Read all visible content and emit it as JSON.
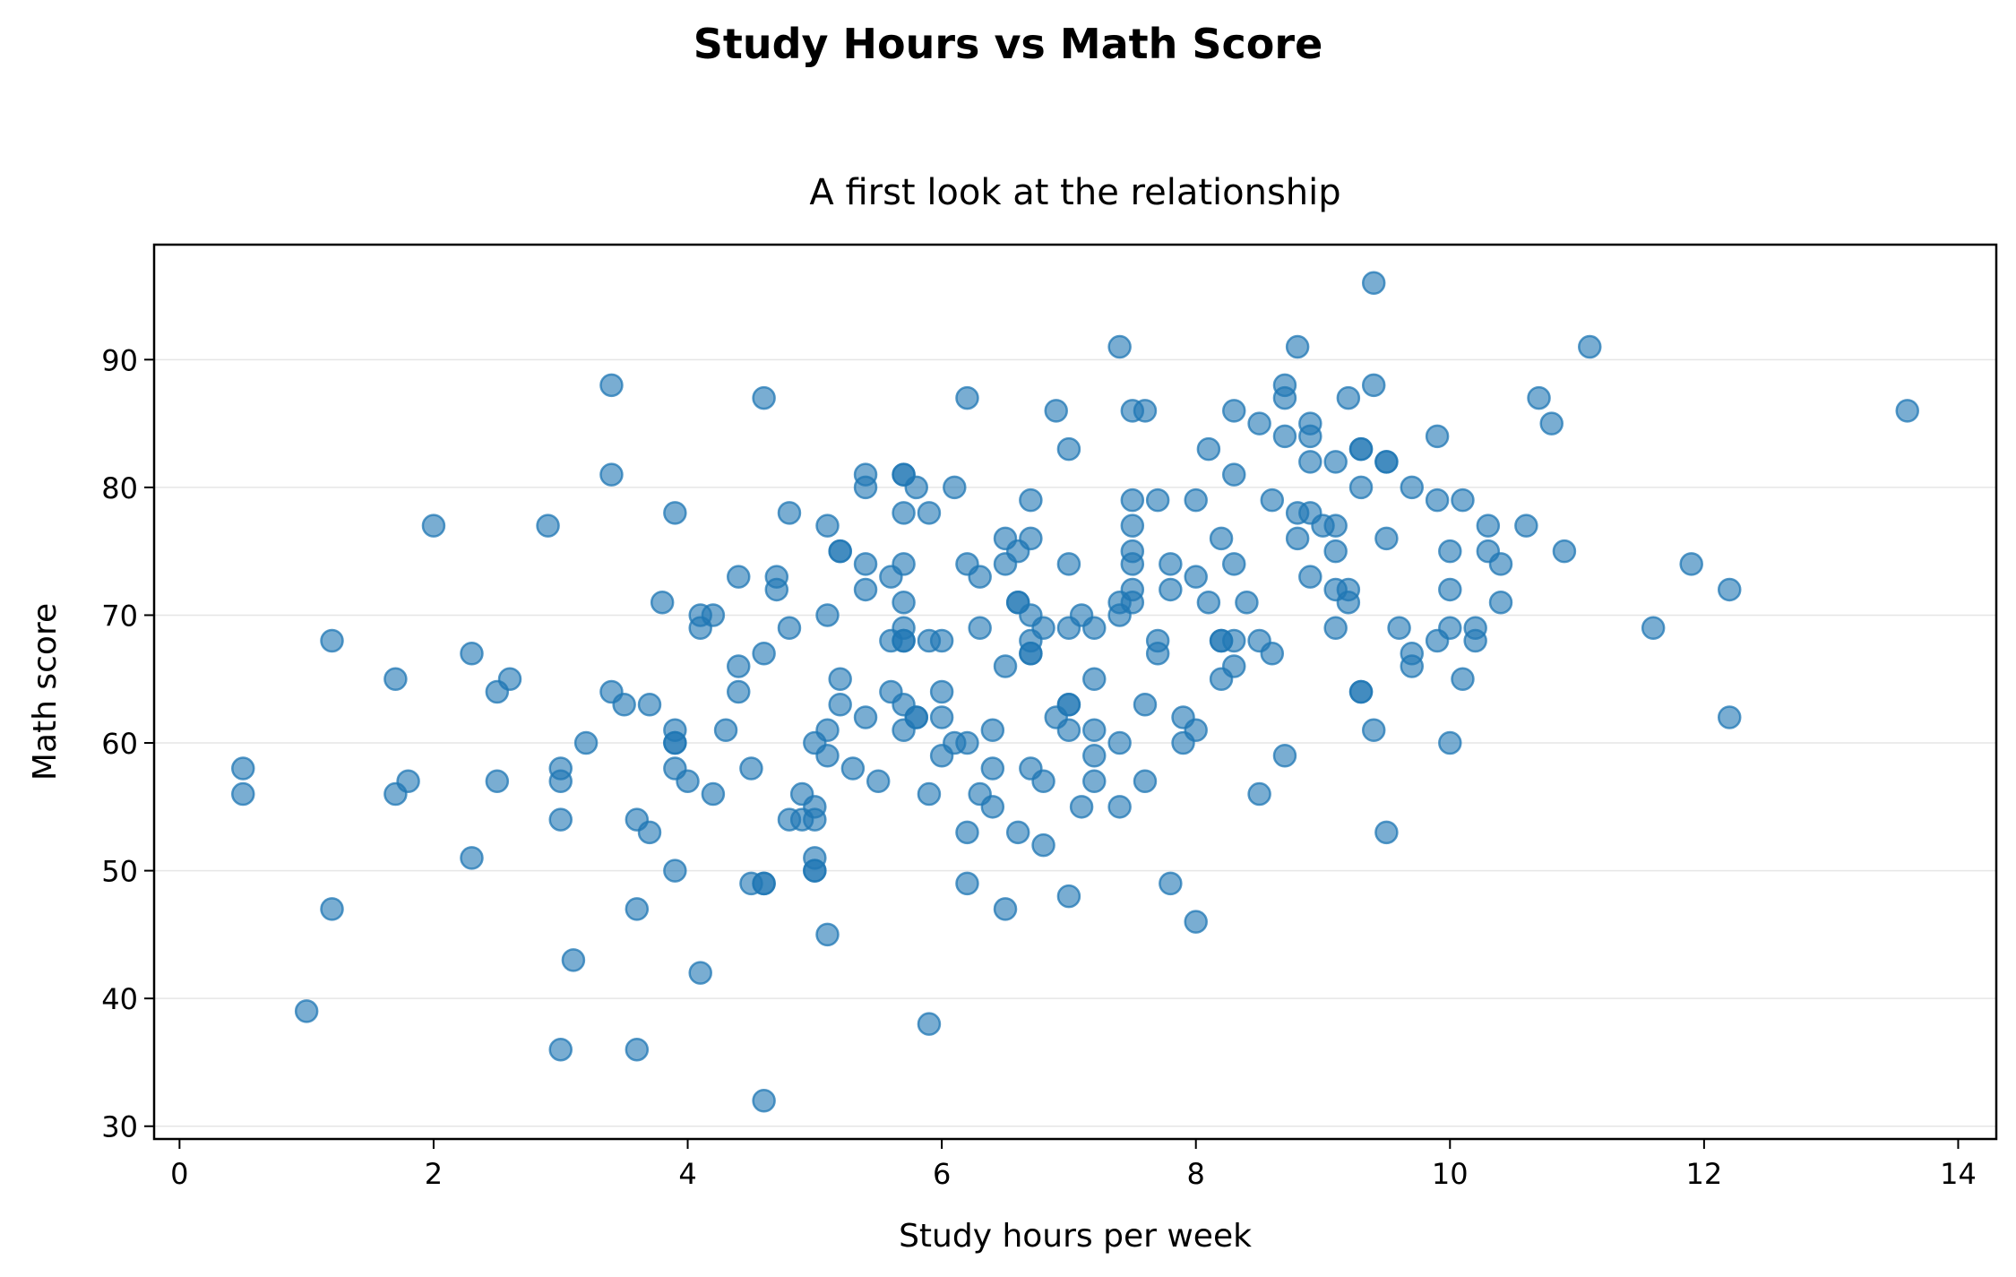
{
  "figure": {
    "title": "Study Hours vs Math Score"
  },
  "chart_data": {
    "type": "scatter",
    "title": "A first look at the relationship",
    "xlabel": "Study hours per week",
    "ylabel": "Math score",
    "xlim": [
      -0.2,
      14.3
    ],
    "ylim": [
      29,
      99
    ],
    "xticks": [
      0,
      2,
      4,
      6,
      8,
      10,
      12,
      14
    ],
    "yticks": [
      30,
      40,
      50,
      60,
      70,
      80,
      90
    ],
    "grid": "horizontal",
    "legend": "none",
    "color": "#1f77b4",
    "points": [
      [
        0.5,
        58
      ],
      [
        0.5,
        56
      ],
      [
        1.0,
        39
      ],
      [
        1.2,
        68
      ],
      [
        1.2,
        47
      ],
      [
        1.7,
        65
      ],
      [
        1.7,
        56
      ],
      [
        1.8,
        57
      ],
      [
        2.0,
        77
      ],
      [
        2.3,
        67
      ],
      [
        2.3,
        51
      ],
      [
        2.5,
        64
      ],
      [
        2.5,
        57
      ],
      [
        2.6,
        65
      ],
      [
        2.9,
        77
      ],
      [
        3.0,
        58
      ],
      [
        3.0,
        57
      ],
      [
        3.0,
        54
      ],
      [
        3.0,
        36
      ],
      [
        3.1,
        43
      ],
      [
        3.2,
        60
      ],
      [
        3.4,
        88
      ],
      [
        3.4,
        81
      ],
      [
        3.4,
        64
      ],
      [
        3.5,
        63
      ],
      [
        3.6,
        54
      ],
      [
        3.6,
        47
      ],
      [
        3.6,
        36
      ],
      [
        3.7,
        63
      ],
      [
        3.7,
        53
      ],
      [
        3.8,
        71
      ],
      [
        3.9,
        78
      ],
      [
        3.9,
        61
      ],
      [
        3.9,
        60
      ],
      [
        3.9,
        60
      ],
      [
        3.9,
        58
      ],
      [
        3.9,
        50
      ],
      [
        4.0,
        57
      ],
      [
        4.1,
        70
      ],
      [
        4.1,
        69
      ],
      [
        4.1,
        42
      ],
      [
        4.2,
        70
      ],
      [
        4.2,
        56
      ],
      [
        4.3,
        61
      ],
      [
        4.4,
        73
      ],
      [
        4.4,
        66
      ],
      [
        4.4,
        64
      ],
      [
        4.5,
        58
      ],
      [
        4.5,
        49
      ],
      [
        4.6,
        87
      ],
      [
        4.6,
        67
      ],
      [
        4.6,
        49
      ],
      [
        4.6,
        49
      ],
      [
        4.6,
        32
      ],
      [
        4.7,
        73
      ],
      [
        4.7,
        72
      ],
      [
        4.8,
        78
      ],
      [
        4.8,
        69
      ],
      [
        4.8,
        54
      ],
      [
        4.9,
        56
      ],
      [
        4.9,
        54
      ],
      [
        5.0,
        60
      ],
      [
        5.0,
        55
      ],
      [
        5.0,
        54
      ],
      [
        5.0,
        51
      ],
      [
        5.0,
        50
      ],
      [
        5.0,
        50
      ],
      [
        5.1,
        77
      ],
      [
        5.1,
        70
      ],
      [
        5.1,
        61
      ],
      [
        5.1,
        59
      ],
      [
        5.1,
        45
      ],
      [
        5.2,
        75
      ],
      [
        5.2,
        75
      ],
      [
        5.2,
        65
      ],
      [
        5.2,
        63
      ],
      [
        5.3,
        58
      ],
      [
        5.4,
        81
      ],
      [
        5.4,
        80
      ],
      [
        5.4,
        74
      ],
      [
        5.4,
        72
      ],
      [
        5.4,
        62
      ],
      [
        5.5,
        57
      ],
      [
        5.6,
        73
      ],
      [
        5.6,
        68
      ],
      [
        5.6,
        64
      ],
      [
        5.7,
        81
      ],
      [
        5.7,
        81
      ],
      [
        5.7,
        78
      ],
      [
        5.7,
        74
      ],
      [
        5.7,
        71
      ],
      [
        5.7,
        69
      ],
      [
        5.7,
        68
      ],
      [
        5.7,
        68
      ],
      [
        5.7,
        63
      ],
      [
        5.7,
        61
      ],
      [
        5.8,
        80
      ],
      [
        5.8,
        62
      ],
      [
        5.8,
        62
      ],
      [
        5.9,
        78
      ],
      [
        5.9,
        68
      ],
      [
        5.9,
        56
      ],
      [
        5.9,
        38
      ],
      [
        6.0,
        68
      ],
      [
        6.0,
        64
      ],
      [
        6.0,
        62
      ],
      [
        6.0,
        59
      ],
      [
        6.1,
        80
      ],
      [
        6.1,
        60
      ],
      [
        6.2,
        87
      ],
      [
        6.2,
        74
      ],
      [
        6.2,
        60
      ],
      [
        6.2,
        53
      ],
      [
        6.2,
        49
      ],
      [
        6.3,
        73
      ],
      [
        6.3,
        69
      ],
      [
        6.3,
        56
      ],
      [
        6.4,
        61
      ],
      [
        6.4,
        58
      ],
      [
        6.4,
        55
      ],
      [
        6.5,
        76
      ],
      [
        6.5,
        74
      ],
      [
        6.5,
        66
      ],
      [
        6.5,
        47
      ],
      [
        6.6,
        75
      ],
      [
        6.6,
        71
      ],
      [
        6.6,
        71
      ],
      [
        6.6,
        53
      ],
      [
        6.7,
        79
      ],
      [
        6.7,
        76
      ],
      [
        6.7,
        70
      ],
      [
        6.7,
        68
      ],
      [
        6.7,
        67
      ],
      [
        6.7,
        67
      ],
      [
        6.7,
        58
      ],
      [
        6.8,
        69
      ],
      [
        6.8,
        57
      ],
      [
        6.8,
        52
      ],
      [
        6.9,
        86
      ],
      [
        6.9,
        62
      ],
      [
        7.0,
        83
      ],
      [
        7.0,
        74
      ],
      [
        7.0,
        69
      ],
      [
        7.0,
        63
      ],
      [
        7.0,
        63
      ],
      [
        7.0,
        61
      ],
      [
        7.0,
        48
      ],
      [
        7.1,
        70
      ],
      [
        7.1,
        55
      ],
      [
        7.2,
        69
      ],
      [
        7.2,
        65
      ],
      [
        7.2,
        61
      ],
      [
        7.2,
        59
      ],
      [
        7.2,
        57
      ],
      [
        7.4,
        91
      ],
      [
        7.4,
        71
      ],
      [
        7.4,
        70
      ],
      [
        7.4,
        60
      ],
      [
        7.4,
        55
      ],
      [
        7.5,
        86
      ],
      [
        7.5,
        79
      ],
      [
        7.5,
        77
      ],
      [
        7.5,
        75
      ],
      [
        7.5,
        74
      ],
      [
        7.5,
        72
      ],
      [
        7.5,
        71
      ],
      [
        7.6,
        86
      ],
      [
        7.6,
        63
      ],
      [
        7.6,
        57
      ],
      [
        7.7,
        79
      ],
      [
        7.7,
        68
      ],
      [
        7.7,
        67
      ],
      [
        7.8,
        74
      ],
      [
        7.8,
        72
      ],
      [
        7.8,
        49
      ],
      [
        7.9,
        62
      ],
      [
        7.9,
        60
      ],
      [
        8.0,
        79
      ],
      [
        8.0,
        73
      ],
      [
        8.0,
        61
      ],
      [
        8.0,
        46
      ],
      [
        8.1,
        83
      ],
      [
        8.1,
        71
      ],
      [
        8.2,
        76
      ],
      [
        8.2,
        68
      ],
      [
        8.2,
        68
      ],
      [
        8.2,
        65
      ],
      [
        8.3,
        86
      ],
      [
        8.3,
        81
      ],
      [
        8.3,
        74
      ],
      [
        8.3,
        68
      ],
      [
        8.3,
        66
      ],
      [
        8.4,
        71
      ],
      [
        8.5,
        85
      ],
      [
        8.5,
        68
      ],
      [
        8.5,
        56
      ],
      [
        8.6,
        79
      ],
      [
        8.6,
        67
      ],
      [
        8.7,
        88
      ],
      [
        8.7,
        87
      ],
      [
        8.7,
        84
      ],
      [
        8.7,
        59
      ],
      [
        8.8,
        91
      ],
      [
        8.8,
        78
      ],
      [
        8.8,
        76
      ],
      [
        8.9,
        85
      ],
      [
        8.9,
        84
      ],
      [
        8.9,
        82
      ],
      [
        8.9,
        78
      ],
      [
        8.9,
        73
      ],
      [
        9.0,
        77
      ],
      [
        9.1,
        82
      ],
      [
        9.1,
        77
      ],
      [
        9.1,
        75
      ],
      [
        9.1,
        72
      ],
      [
        9.1,
        69
      ],
      [
        9.2,
        87
      ],
      [
        9.2,
        72
      ],
      [
        9.2,
        71
      ],
      [
        9.3,
        83
      ],
      [
        9.3,
        83
      ],
      [
        9.3,
        80
      ],
      [
        9.3,
        64
      ],
      [
        9.3,
        64
      ],
      [
        9.4,
        96
      ],
      [
        9.4,
        88
      ],
      [
        9.4,
        61
      ],
      [
        9.5,
        82
      ],
      [
        9.5,
        82
      ],
      [
        9.5,
        76
      ],
      [
        9.5,
        53
      ],
      [
        9.6,
        69
      ],
      [
        9.7,
        80
      ],
      [
        9.7,
        67
      ],
      [
        9.7,
        66
      ],
      [
        9.9,
        84
      ],
      [
        9.9,
        79
      ],
      [
        9.9,
        68
      ],
      [
        10.0,
        75
      ],
      [
        10.0,
        72
      ],
      [
        10.0,
        69
      ],
      [
        10.0,
        60
      ],
      [
        10.1,
        79
      ],
      [
        10.1,
        65
      ],
      [
        10.2,
        69
      ],
      [
        10.2,
        68
      ],
      [
        10.3,
        77
      ],
      [
        10.3,
        75
      ],
      [
        10.4,
        74
      ],
      [
        10.4,
        71
      ],
      [
        10.6,
        77
      ],
      [
        10.7,
        87
      ],
      [
        10.8,
        85
      ],
      [
        10.9,
        75
      ],
      [
        11.1,
        91
      ],
      [
        11.6,
        69
      ],
      [
        11.9,
        74
      ],
      [
        12.2,
        72
      ],
      [
        12.2,
        62
      ],
      [
        13.6,
        86
      ]
    ]
  }
}
